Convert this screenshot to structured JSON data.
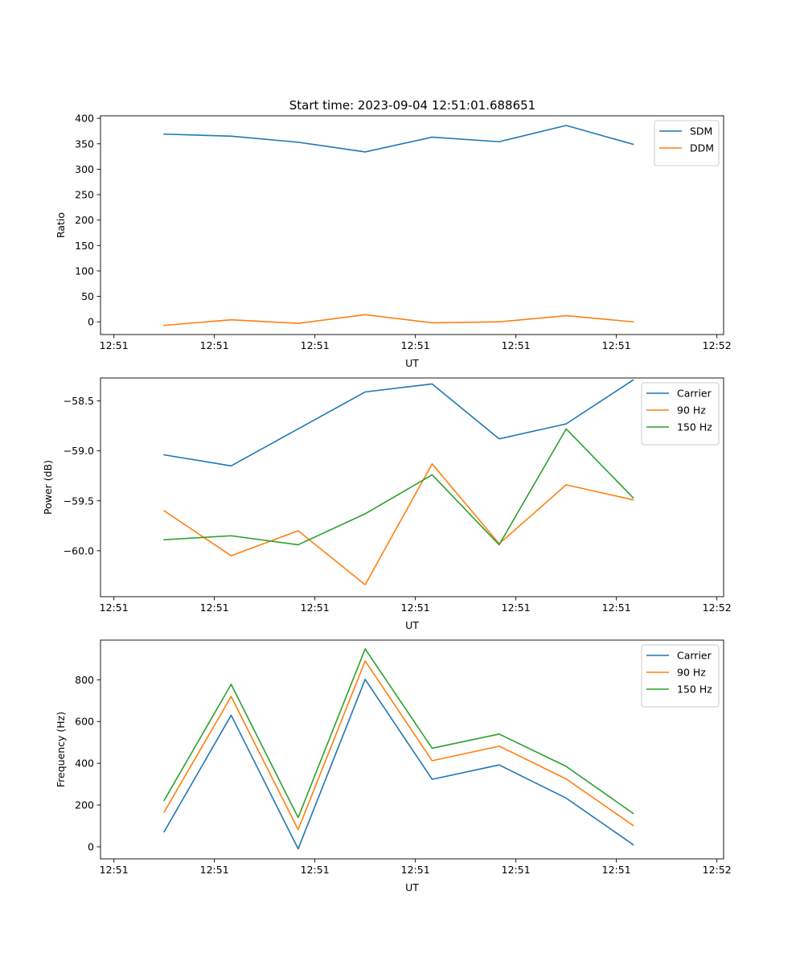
{
  "title": "Start time: 2023-09-04 12:51:01.688651",
  "chart_data": [
    {
      "type": "line",
      "xlabel": "UT",
      "ylabel": "Ratio",
      "xlim": [
        -0.2,
        9.1
      ],
      "ylim": [
        -25,
        405
      ],
      "x_tick_labels": [
        "12:51",
        "12:51",
        "12:51",
        "12:51",
        "12:51",
        "12:51",
        "12:52"
      ],
      "y_ticks": [
        0,
        50,
        100,
        150,
        200,
        250,
        300,
        350,
        400
      ],
      "y_tick_labels": [
        "0",
        "50",
        "100",
        "150",
        "200",
        "250",
        "300",
        "350",
        "400"
      ],
      "x": [
        0.75,
        1.75,
        2.75,
        3.75,
        4.75,
        5.75,
        6.75,
        7.75
      ],
      "legend_position": "top-right",
      "series": [
        {
          "name": "SDM",
          "color": "#1f77b4",
          "values": [
            369,
            365,
            353,
            334,
            363,
            354,
            386,
            349
          ]
        },
        {
          "name": "DDM",
          "color": "#ff7f0e",
          "values": [
            -7,
            4,
            -3,
            14,
            -2,
            0,
            12,
            0
          ]
        }
      ]
    },
    {
      "type": "line",
      "xlabel": "UT",
      "ylabel": "Power (dB)",
      "xlim": [
        -0.2,
        9.1
      ],
      "ylim": [
        -60.46,
        -58.27
      ],
      "x_tick_labels": [
        "12:51",
        "12:51",
        "12:51",
        "12:51",
        "12:51",
        "12:51",
        "12:52"
      ],
      "y_ticks": [
        -60.0,
        -59.5,
        -59.0,
        -58.5
      ],
      "y_tick_labels": [
        "−60.0",
        "−59.5",
        "−59.0",
        "−58.5"
      ],
      "x": [
        0.75,
        1.75,
        2.75,
        3.75,
        4.75,
        5.75,
        6.75,
        7.75
      ],
      "legend_position": "top-right",
      "series": [
        {
          "name": "Carrier",
          "color": "#1f77b4",
          "values": [
            -59.04,
            -59.15,
            -58.78,
            -58.41,
            -58.33,
            -58.88,
            -58.73,
            -58.29
          ]
        },
        {
          "name": "90 Hz",
          "color": "#ff7f0e",
          "values": [
            -59.6,
            -60.05,
            -59.8,
            -60.34,
            -59.13,
            -59.93,
            -59.34,
            -59.49
          ]
        },
        {
          "name": "150 Hz",
          "color": "#2ca02c",
          "values": [
            -59.89,
            -59.85,
            -59.94,
            -59.63,
            -59.24,
            -59.94,
            -58.78,
            -59.47
          ]
        }
      ]
    },
    {
      "type": "line",
      "xlabel": "UT",
      "ylabel": "Frequency (Hz)",
      "xlim": [
        -0.2,
        9.1
      ],
      "ylim": [
        -58,
        990
      ],
      "x_tick_labels": [
        "12:51",
        "12:51",
        "12:51",
        "12:51",
        "12:51",
        "12:51",
        "12:52"
      ],
      "y_ticks": [
        0,
        200,
        400,
        600,
        800
      ],
      "y_tick_labels": [
        "0",
        "200",
        "400",
        "600",
        "800"
      ],
      "x": [
        0.75,
        1.75,
        2.75,
        3.75,
        4.75,
        5.75,
        6.75,
        7.75
      ],
      "legend_position": "top-right",
      "series": [
        {
          "name": "Carrier",
          "color": "#1f77b4",
          "values": [
            72,
            630,
            -10,
            802,
            323,
            392,
            233,
            10
          ]
        },
        {
          "name": "90 Hz",
          "color": "#ff7f0e",
          "values": [
            166,
            720,
            82,
            890,
            412,
            482,
            325,
            102
          ]
        },
        {
          "name": "150 Hz",
          "color": "#2ca02c",
          "values": [
            222,
            778,
            140,
            948,
            472,
            540,
            385,
            160
          ]
        }
      ]
    }
  ]
}
